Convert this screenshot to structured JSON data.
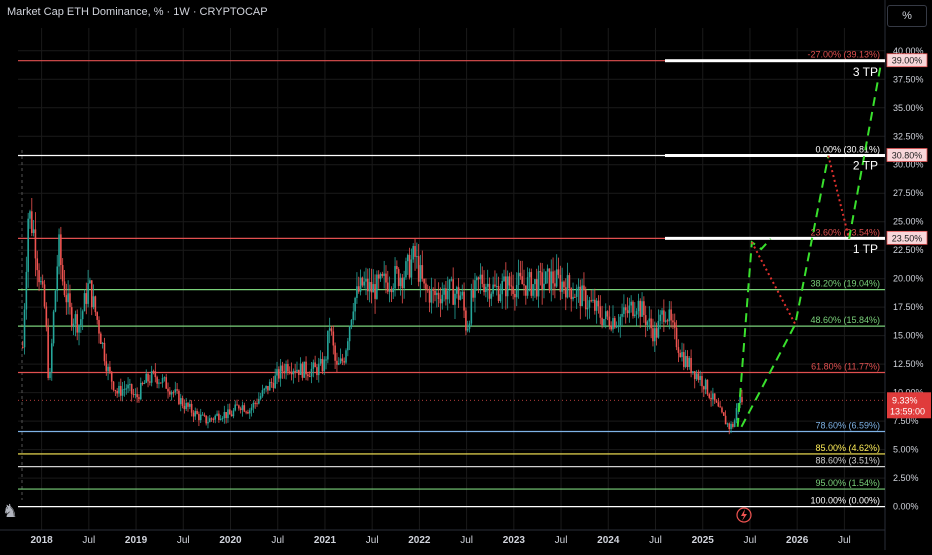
{
  "header": {
    "title": "Market Cap ETH Dominance, % · 1W · CRYPTOCAP",
    "unit_button": "%"
  },
  "logo_icon": "tradingview-logo-icon",
  "colors": {
    "background": "#000000",
    "up": "#26a69a",
    "down": "#ef5350",
    "grid": "#1a1a1a",
    "axis_text": "#d1d4dc",
    "projection": "#39e02d",
    "retrace": "#e0302d"
  },
  "chart_data": {
    "type": "candlestick",
    "x_ticks": [
      "2018",
      "Jul",
      "2019",
      "Jul",
      "2020",
      "Jul",
      "2021",
      "Jul",
      "2022",
      "Jul",
      "2023",
      "Jul",
      "2024",
      "Jul",
      "2025",
      "Jul",
      "2026",
      "Jul"
    ],
    "x_tick_values": [
      2018.0,
      2018.5,
      2019.0,
      2019.5,
      2020.0,
      2020.5,
      2021.0,
      2021.5,
      2022.0,
      2022.5,
      2023.0,
      2023.5,
      2024.0,
      2024.5,
      2025.0,
      2025.5,
      2026.0,
      2026.5
    ],
    "y_ticks": [
      "0.00%",
      "2.50%",
      "5.00%",
      "7.50%",
      "10.00%",
      "12.50%",
      "15.00%",
      "17.50%",
      "20.00%",
      "22.50%",
      "25.00%",
      "27.50%",
      "30.00%",
      "32.50%",
      "35.00%",
      "37.50%",
      "40.00%"
    ],
    "ylim": [
      -1.0,
      42.0
    ],
    "xlim": [
      2017.75,
      2026.93
    ],
    "series": [
      {
        "close_path": [
          [
            2017.8,
            14.0
          ],
          [
            2017.86,
            26.0
          ],
          [
            2017.92,
            24.0
          ],
          [
            2017.98,
            20.0
          ],
          [
            2018.04,
            17.0
          ],
          [
            2018.08,
            10.0
          ],
          [
            2018.12,
            16.0
          ],
          [
            2018.18,
            23.0
          ],
          [
            2018.22,
            20.0
          ],
          [
            2018.3,
            17.0
          ],
          [
            2018.4,
            16.0
          ],
          [
            2018.5,
            19.5
          ],
          [
            2018.6,
            16.0
          ],
          [
            2018.7,
            12.0
          ],
          [
            2018.8,
            10.0
          ],
          [
            2018.9,
            10.5
          ],
          [
            2019.0,
            9.5
          ],
          [
            2019.1,
            11.0
          ],
          [
            2019.2,
            11.5
          ],
          [
            2019.35,
            10.5
          ],
          [
            2019.5,
            9.0
          ],
          [
            2019.65,
            8.0
          ],
          [
            2019.75,
            7.5
          ],
          [
            2019.9,
            8.2
          ],
          [
            2020.0,
            8.0
          ],
          [
            2020.1,
            9.0
          ],
          [
            2020.2,
            8.5
          ],
          [
            2020.3,
            9.5
          ],
          [
            2020.45,
            11.0
          ],
          [
            2020.6,
            12.5
          ],
          [
            2020.75,
            12.0
          ],
          [
            2020.9,
            12.0
          ],
          [
            2021.0,
            12.5
          ],
          [
            2021.05,
            16.0
          ],
          [
            2021.12,
            12.0
          ],
          [
            2021.2,
            13.0
          ],
          [
            2021.3,
            18.0
          ],
          [
            2021.4,
            19.5
          ],
          [
            2021.5,
            19.0
          ],
          [
            2021.6,
            19.5
          ],
          [
            2021.7,
            20.0
          ],
          [
            2021.85,
            20.5
          ],
          [
            2021.95,
            22.0
          ],
          [
            2022.05,
            19.0
          ],
          [
            2022.15,
            18.5
          ],
          [
            2022.3,
            19.0
          ],
          [
            2022.45,
            18.5
          ],
          [
            2022.5,
            15.5
          ],
          [
            2022.55,
            18.0
          ],
          [
            2022.65,
            20.0
          ],
          [
            2022.8,
            19.0
          ],
          [
            2022.95,
            19.5
          ],
          [
            2023.1,
            19.5
          ],
          [
            2023.25,
            19.5
          ],
          [
            2023.4,
            20.0
          ],
          [
            2023.55,
            19.5
          ],
          [
            2023.7,
            18.5
          ],
          [
            2023.85,
            17.5
          ],
          [
            2023.95,
            16.5
          ],
          [
            2024.1,
            16.5
          ],
          [
            2024.2,
            17.0
          ],
          [
            2024.3,
            18.0
          ],
          [
            2024.4,
            16.5
          ],
          [
            2024.5,
            15.0
          ],
          [
            2024.6,
            17.5
          ],
          [
            2024.7,
            15.0
          ],
          [
            2024.8,
            13.0
          ],
          [
            2024.9,
            12.0
          ],
          [
            2025.0,
            11.0
          ],
          [
            2025.1,
            9.5
          ],
          [
            2025.2,
            8.0
          ],
          [
            2025.28,
            7.0
          ],
          [
            2025.33,
            7.2
          ],
          [
            2025.38,
            9.5
          ],
          [
            2025.42,
            9.3
          ]
        ]
      }
    ],
    "last_price": {
      "label": "9.33%",
      "countdown": "13:59:00",
      "value": 9.33
    },
    "fib_levels": [
      {
        "label": "-27.00% (39.13%)",
        "value": 39.13,
        "color": "#e05050",
        "axis_label": "39.00%"
      },
      {
        "label": "0.00% (30.81%)",
        "value": 30.81,
        "color": "#ffffff",
        "axis_label": "30.80%"
      },
      {
        "label": "23.60% (23.54%)",
        "value": 23.54,
        "color": "#e05050",
        "axis_label": "23.50%"
      },
      {
        "label": "38.20% (19.04%)",
        "value": 19.04,
        "color": "#7ad07a",
        "axis_label": ""
      },
      {
        "label": "48.60% (15.84%)",
        "value": 15.84,
        "color": "#7ad07a",
        "axis_label": ""
      },
      {
        "label": "61.80% (11.77%)",
        "value": 11.77,
        "color": "#e05050",
        "axis_label": ""
      },
      {
        "label": "78.60% (6.59%)",
        "value": 6.59,
        "color": "#7fb3e6",
        "axis_label": ""
      },
      {
        "label": "85.00% (4.62%)",
        "value": 4.62,
        "color": "#ffee58",
        "axis_label": ""
      },
      {
        "label": "88.60% (3.51%)",
        "value": 3.51,
        "color": "#cfcfcf",
        "axis_label": ""
      },
      {
        "label": "95.00% (1.54%)",
        "value": 1.54,
        "color": "#7ad07a",
        "axis_label": ""
      },
      {
        "label": "100.00% (0.00%)",
        "value": 0.0,
        "color": "#ffffff",
        "axis_label": ""
      }
    ],
    "targets": [
      {
        "label": "1 TP",
        "value": 23.5
      },
      {
        "label": "2 TP",
        "value": 30.8
      },
      {
        "label": "3 TP",
        "value": 39.0
      }
    ],
    "projection_up": [
      [
        2025.37,
        7.0
      ],
      [
        2025.52,
        23.2
      ],
      [
        2025.62,
        22.6
      ],
      [
        2025.72,
        23.5
      ]
    ],
    "projection_retrace": [
      [
        2025.52,
        23.2
      ],
      [
        2025.98,
        16.0
      ]
    ],
    "projection_up2": [
      [
        2025.41,
        7.0
      ],
      [
        2025.98,
        16.0
      ],
      [
        2026.33,
        30.8
      ]
    ],
    "projection_retrace2": [
      [
        2026.33,
        30.8
      ],
      [
        2026.55,
        23.5
      ]
    ],
    "projection_up3": [
      [
        2026.55,
        23.5
      ],
      [
        2026.89,
        39.0
      ]
    ]
  }
}
